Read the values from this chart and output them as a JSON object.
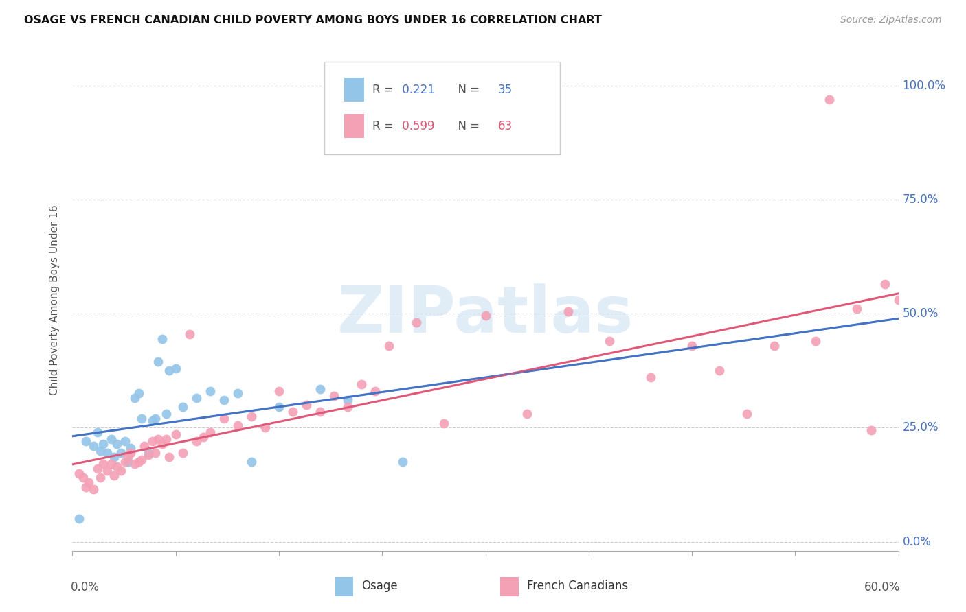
{
  "title": "OSAGE VS FRENCH CANADIAN CHILD POVERTY AMONG BOYS UNDER 16 CORRELATION CHART",
  "source": "Source: ZipAtlas.com",
  "ylabel": "Child Poverty Among Boys Under 16",
  "ytick_values": [
    0.0,
    0.25,
    0.5,
    0.75,
    1.0
  ],
  "xmin": 0.0,
  "xmax": 0.6,
  "ymin": -0.02,
  "ymax": 1.08,
  "osage_R": 0.221,
  "osage_N": 35,
  "fc_R": 0.599,
  "fc_N": 63,
  "osage_color": "#93c5e8",
  "fc_color": "#f4a0b5",
  "trend_osage_color": "#4472c4",
  "trend_fc_color": "#e05878",
  "watermark_color": "#c8ddf0",
  "blue_label_color": "#4472c4",
  "pink_label_color": "#e05878",
  "axis_label_color": "#4472c4",
  "legend_label_osage": "Osage",
  "legend_label_fc": "French Canadians",
  "osage_x": [
    0.005,
    0.01,
    0.015,
    0.018,
    0.02,
    0.022,
    0.025,
    0.028,
    0.03,
    0.032,
    0.035,
    0.038,
    0.04,
    0.042,
    0.045,
    0.048,
    0.05,
    0.055,
    0.058,
    0.06,
    0.062,
    0.065,
    0.068,
    0.07,
    0.075,
    0.08,
    0.09,
    0.1,
    0.11,
    0.12,
    0.13,
    0.15,
    0.18,
    0.2,
    0.24
  ],
  "osage_y": [
    0.05,
    0.22,
    0.21,
    0.24,
    0.2,
    0.215,
    0.195,
    0.225,
    0.185,
    0.215,
    0.195,
    0.22,
    0.175,
    0.205,
    0.315,
    0.325,
    0.27,
    0.195,
    0.265,
    0.27,
    0.395,
    0.445,
    0.28,
    0.375,
    0.38,
    0.295,
    0.315,
    0.33,
    0.31,
    0.325,
    0.175,
    0.295,
    0.335,
    0.31,
    0.175
  ],
  "fc_x": [
    0.005,
    0.008,
    0.01,
    0.012,
    0.015,
    0.018,
    0.02,
    0.022,
    0.025,
    0.028,
    0.03,
    0.032,
    0.035,
    0.038,
    0.04,
    0.042,
    0.045,
    0.048,
    0.05,
    0.052,
    0.055,
    0.058,
    0.06,
    0.062,
    0.065,
    0.068,
    0.07,
    0.075,
    0.08,
    0.085,
    0.09,
    0.095,
    0.1,
    0.11,
    0.12,
    0.13,
    0.14,
    0.15,
    0.16,
    0.17,
    0.18,
    0.19,
    0.2,
    0.21,
    0.22,
    0.23,
    0.25,
    0.27,
    0.3,
    0.33,
    0.36,
    0.39,
    0.42,
    0.45,
    0.47,
    0.49,
    0.51,
    0.54,
    0.55,
    0.57,
    0.58,
    0.59,
    0.6
  ],
  "fc_y": [
    0.15,
    0.14,
    0.12,
    0.13,
    0.115,
    0.16,
    0.14,
    0.17,
    0.155,
    0.17,
    0.145,
    0.165,
    0.155,
    0.175,
    0.185,
    0.195,
    0.17,
    0.175,
    0.18,
    0.21,
    0.19,
    0.22,
    0.195,
    0.225,
    0.215,
    0.225,
    0.185,
    0.235,
    0.195,
    0.455,
    0.22,
    0.23,
    0.24,
    0.27,
    0.255,
    0.275,
    0.25,
    0.33,
    0.285,
    0.3,
    0.285,
    0.32,
    0.295,
    0.345,
    0.33,
    0.43,
    0.48,
    0.26,
    0.495,
    0.28,
    0.505,
    0.44,
    0.36,
    0.43,
    0.375,
    0.28,
    0.43,
    0.44,
    0.97,
    0.51,
    0.245,
    0.565,
    0.53
  ]
}
